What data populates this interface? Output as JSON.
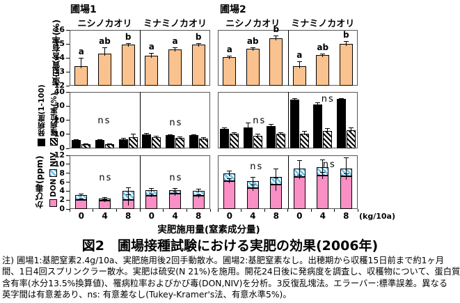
{
  "caption": "図2　圃場接種試験における実肥の効果(2006年)",
  "notes": [
    "注) 圃場1:基肥窒素2.4g/10a、実肥施用後2回手動散水。圃場2:基肥窒素なし。出穂期から収穫15日前まで約1ヶ月",
    "間、1日4回スプリンクラー散水。実肥は硫安(N 21%)を施用。開花24日後に発病度を調査し、収穫物について、蛋白質",
    "含有率(水分13.5%換算値)、罹病粒率およびかび毒(DON,NIV)を分析。3反復乱塊法。エラーバー:標準誤差。異なる",
    "英字間は有意差あり、ns: 有意差なし(Tukey-Kramer's法、有意水準5%)。"
  ],
  "chart_data": {
    "type": "bar",
    "title": "図2　圃場接種試験における実肥の効果(2006年)",
    "field_labels": [
      "圃場1",
      "圃場2"
    ],
    "variety_labels": [
      "ニシノカオリ",
      "ミナミノカオリ",
      "ニシノカオリ",
      "ミナミノカオリ"
    ],
    "x_label": "実肥施用量(窒素成分量)",
    "x_unit": "(kg/10a)",
    "x_ticks": [
      "0",
      "4",
      "8"
    ],
    "colors": {
      "protein_bar": "#FAC28E",
      "don_bar": "#F98FC4",
      "niv_bar": "#6FC4EC",
      "disease_bar": "#000000"
    },
    "rows": [
      {
        "id": "protein",
        "ylabel": "蛋白質含有率(%)",
        "ylim": [
          12,
          16
        ],
        "yticks": [
          12,
          13,
          14,
          15,
          16
        ],
        "panels": [
          {
            "bars": [
              {
                "v": 13.4,
                "err": 0.6,
                "sig": "a"
              },
              {
                "v": 14.3,
                "err": 0.45,
                "sig": "ab"
              },
              {
                "v": 14.95,
                "err": 0.1,
                "sig": "b"
              }
            ]
          },
          {
            "bars": [
              {
                "v": 14.15,
                "err": 0.2,
                "sig": "a"
              },
              {
                "v": 14.6,
                "err": 0.15,
                "sig": "a"
              },
              {
                "v": 14.95,
                "err": 0.1,
                "sig": "b"
              }
            ]
          },
          {
            "bars": [
              {
                "v": 14.05,
                "err": 0.12,
                "sig": "a"
              },
              {
                "v": 14.65,
                "err": 0.12,
                "sig": "ab"
              },
              {
                "v": 15.4,
                "err": 0.18,
                "sig": "b"
              }
            ]
          },
          {
            "bars": [
              {
                "v": 13.4,
                "err": 0.35,
                "sig": "a"
              },
              {
                "v": 14.2,
                "err": 0.12,
                "sig": "ab"
              },
              {
                "v": 15.0,
                "err": 0.2,
                "sig": "b"
              }
            ]
          }
        ]
      },
      {
        "id": "disease",
        "legend": [
          {
            "label": "発病度(1-100)",
            "swatch": "black"
          },
          {
            "label": "罹病粒率(%)",
            "swatch": "hatch"
          }
        ],
        "ylim": [
          0,
          40
        ],
        "yticks": [
          0,
          10,
          20,
          30,
          40
        ],
        "panels": [
          {
            "ns": "ns",
            "black": [
              {
                "v": 6,
                "err": 0.5
              },
              {
                "v": 6,
                "err": 0.5
              },
              {
                "v": 6.5,
                "err": 0.8
              }
            ],
            "hatch": [
              {
                "v": 3,
                "err": 0.5
              },
              {
                "v": 3,
                "err": 0.5
              },
              {
                "v": 8,
                "err": 2.3
              }
            ]
          },
          {
            "ns": "ns",
            "black": [
              {
                "v": 10,
                "err": 0.8
              },
              {
                "v": 9.5,
                "err": 0.5
              },
              {
                "v": 9.5,
                "err": 0.5
              }
            ],
            "hatch": [
              {
                "v": 8,
                "err": 1.0
              },
              {
                "v": 7.5,
                "err": 0.8
              },
              {
                "v": 7,
                "err": 0.8
              }
            ]
          },
          {
            "ns": "ns",
            "black": [
              {
                "v": 14,
                "err": 1.0
              },
              {
                "v": 15,
                "err": 3.5
              },
              {
                "v": 16,
                "err": 1.5
              }
            ],
            "hatch": [
              {
                "v": 10.5,
                "err": 1.0
              },
              {
                "v": 9,
                "err": 1.5
              },
              {
                "v": 10.5,
                "err": 1.0
              }
            ]
          },
          {
            "ns": "ns",
            "black": [
              {
                "v": 34.5,
                "err": 1.0
              },
              {
                "v": 31,
                "err": 1.5
              },
              {
                "v": 35,
                "err": 0.5
              }
            ],
            "hatch": [
              {
                "v": 10.5,
                "err": 2.0
              },
              {
                "v": 12.5,
                "err": 2.0
              },
              {
                "v": 13,
                "err": 2.0
              }
            ]
          }
        ]
      },
      {
        "id": "mycotoxin",
        "ylabel": "かび毒(ppm)",
        "legend": [
          {
            "label": "DON",
            "swatch": "pink"
          },
          {
            "label": "NIV",
            "swatch": "bluehatch"
          }
        ],
        "ylim": [
          0,
          12
        ],
        "yticks": [
          0,
          2,
          4,
          6,
          8,
          10,
          12
        ],
        "panels": [
          {
            "ns": "ns",
            "stacks": [
              {
                "don": 2.1,
                "niv": 1.0,
                "don_err": 0.3,
                "tot_err": 0.3
              },
              {
                "don": 1.9,
                "niv": 0.5,
                "don_err": 0.3,
                "tot_err": 0.3
              },
              {
                "don": 2.0,
                "niv": 2.0,
                "don_err": 1.2,
                "tot_err": 0.8
              }
            ]
          },
          {
            "ns": "ns",
            "stacks": [
              {
                "don": 3.0,
                "niv": 1.2,
                "don_err": 0.4,
                "tot_err": 0.4
              },
              {
                "don": 3.4,
                "niv": 0.8,
                "don_err": 0.5,
                "tot_err": 0.5
              },
              {
                "don": 2.9,
                "niv": 1.2,
                "don_err": 0.4,
                "tot_err": 0.4
              }
            ]
          },
          {
            "ns": "ns",
            "stacks": [
              {
                "don": 6.3,
                "niv": 1.6,
                "don_err": 0.5,
                "tot_err": 0.6
              },
              {
                "don": 4.7,
                "niv": 1.6,
                "don_err": 0.7,
                "tot_err": 0.8
              },
              {
                "don": 5.5,
                "niv": 1.7,
                "don_err": 1.5,
                "tot_err": 1.8
              }
            ]
          },
          {
            "ns": "ns",
            "stacks": [
              {
                "don": 7.2,
                "niv": 1.9,
                "don_err": 0.5,
                "tot_err": 1.8
              },
              {
                "don": 7.5,
                "niv": 1.8,
                "don_err": 0.8,
                "tot_err": 1.7
              },
              {
                "don": 7.3,
                "niv": 1.8,
                "don_err": 0.6,
                "tot_err": 2.5
              }
            ]
          }
        ]
      }
    ]
  }
}
